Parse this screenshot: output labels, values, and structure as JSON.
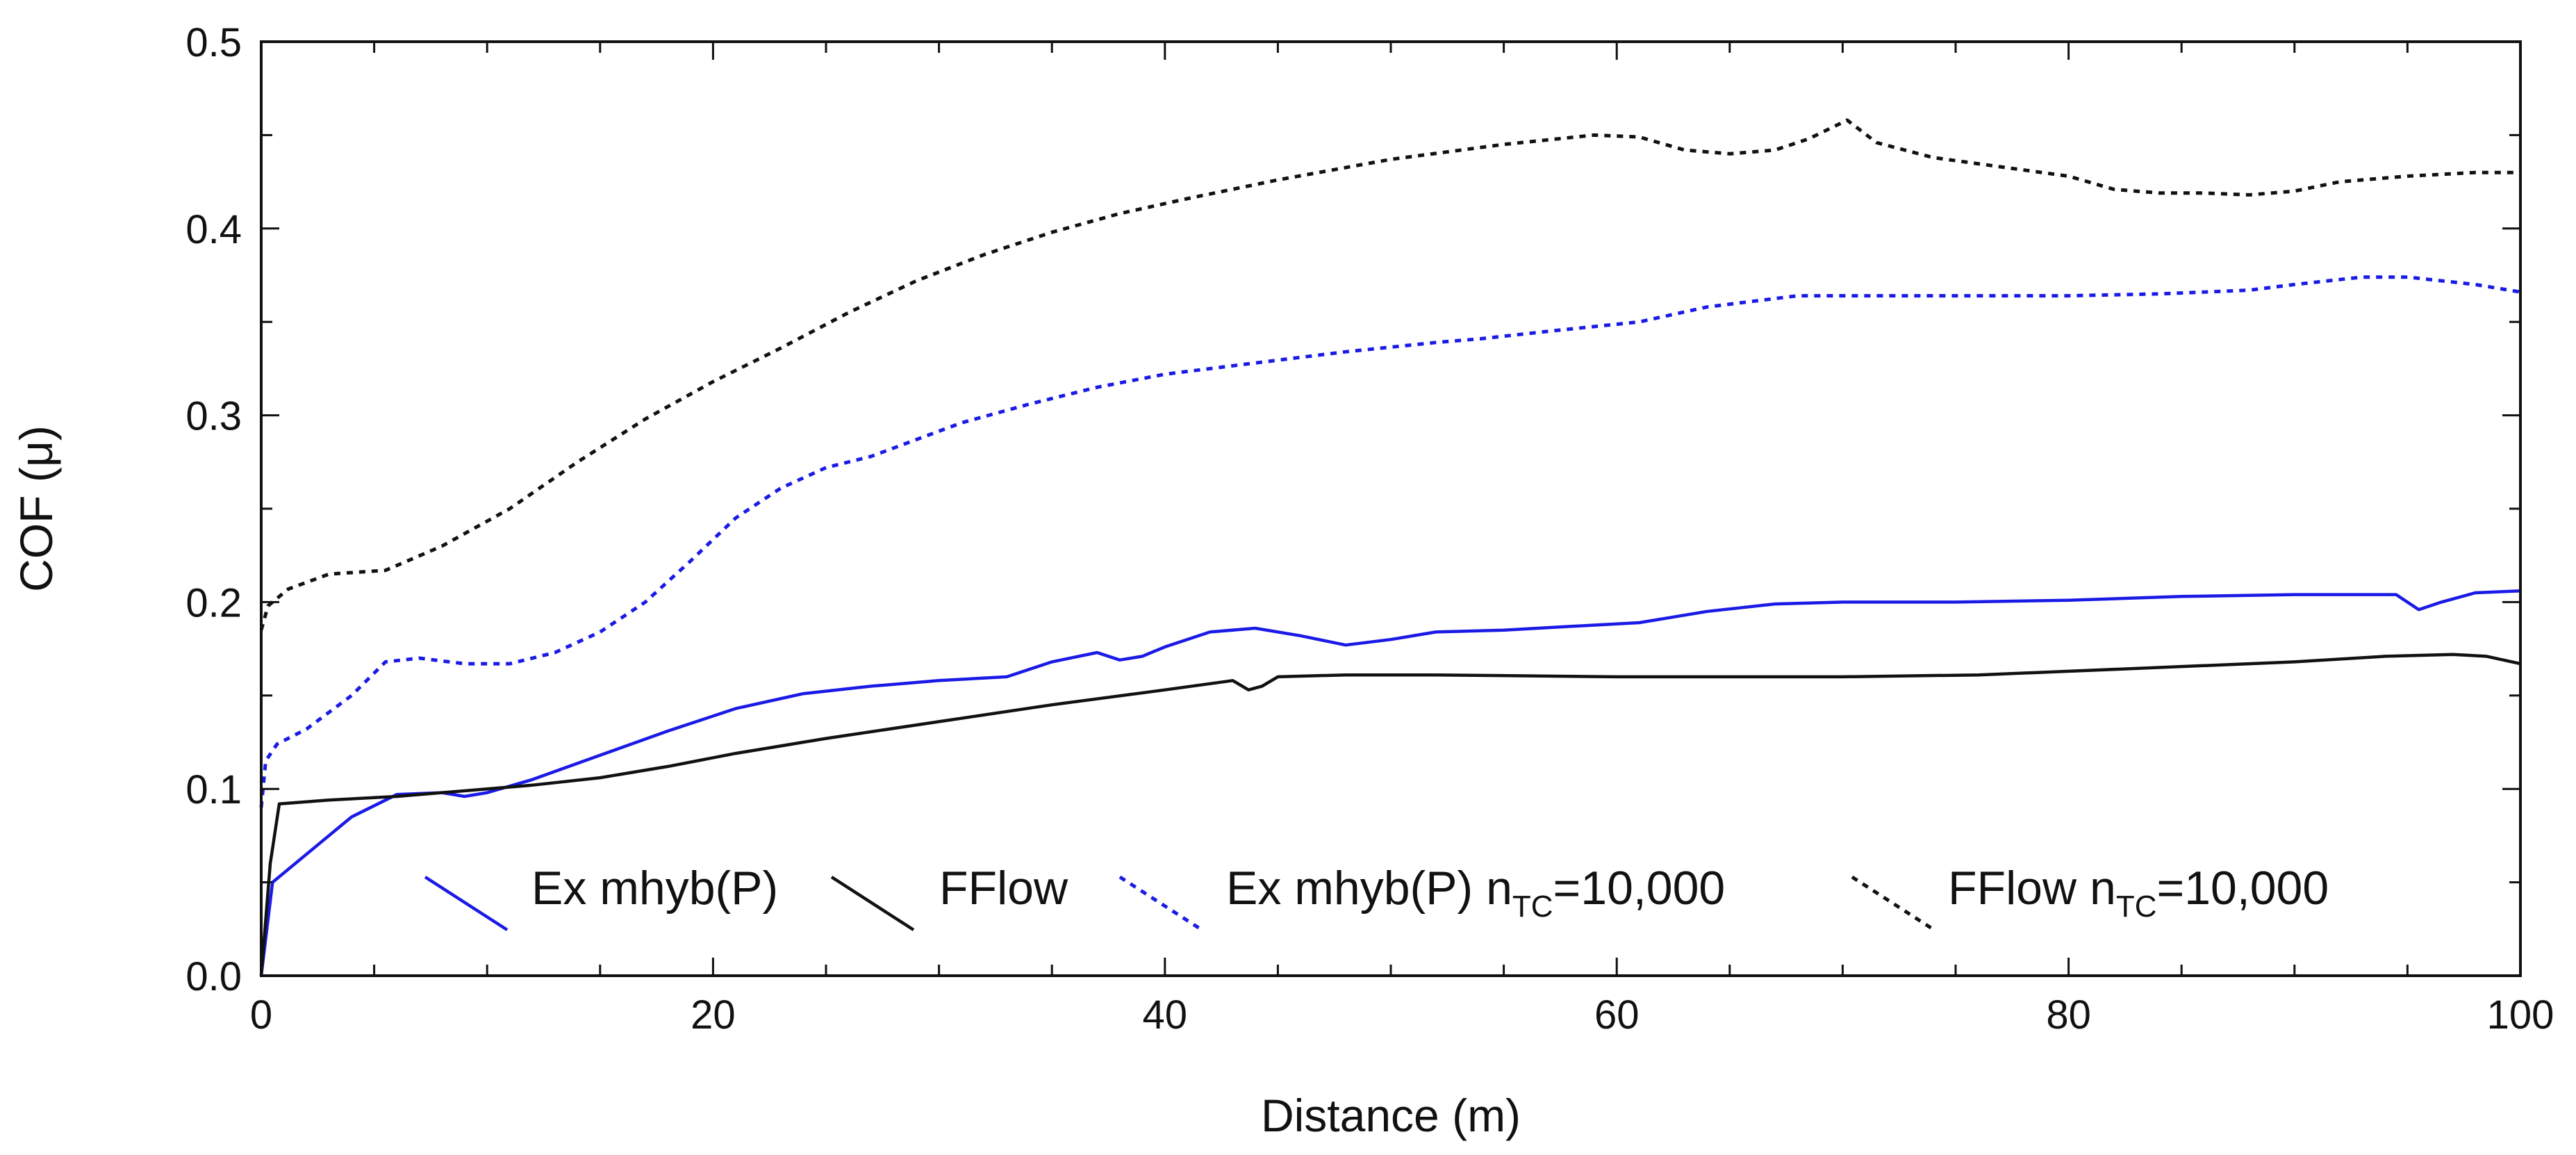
{
  "chart_data": {
    "type": "line",
    "title": "",
    "xlabel": "Distance (m)",
    "ylabel": "COF (μ)",
    "xlim": [
      0,
      100
    ],
    "ylim": [
      0,
      0.5
    ],
    "x_ticks": [
      0,
      20,
      40,
      60,
      80,
      100
    ],
    "x_tick_labels": [
      "0",
      "20",
      "40",
      "60",
      "80",
      "100"
    ],
    "y_ticks": [
      0,
      0.1,
      0.2,
      0.3,
      0.4,
      0.5
    ],
    "y_tick_labels": [
      "0.0",
      "0.1",
      "0.2",
      "0.3",
      "0.4",
      "0.5"
    ],
    "grid": false,
    "legend_position": "bottom",
    "series": [
      {
        "name": "Ex mhyb(P)",
        "legend_main": "Ex mhyb(P)",
        "legend_sub": "",
        "legend_tail": "",
        "color": "#1a1ae6",
        "style": "solid",
        "x": [
          0,
          0.5,
          2,
          4,
          6,
          8,
          9,
          10,
          12,
          15,
          18,
          21,
          24,
          27,
          30,
          33,
          35,
          37,
          38,
          39,
          40,
          42,
          44,
          46,
          48,
          50,
          52,
          55,
          58,
          61,
          64,
          67,
          70,
          75,
          80,
          85,
          90,
          93,
          94.5,
          95.5,
          96.5,
          98,
          100
        ],
        "y": [
          0.0,
          0.05,
          0.065,
          0.085,
          0.097,
          0.098,
          0.096,
          0.098,
          0.105,
          0.118,
          0.131,
          0.143,
          0.151,
          0.155,
          0.158,
          0.16,
          0.168,
          0.173,
          0.169,
          0.171,
          0.176,
          0.184,
          0.186,
          0.182,
          0.177,
          0.18,
          0.184,
          0.185,
          0.187,
          0.189,
          0.195,
          0.199,
          0.2,
          0.2,
          0.201,
          0.203,
          0.204,
          0.204,
          0.204,
          0.196,
          0.2,
          0.205,
          0.206
        ]
      },
      {
        "name": "FFlow",
        "legend_main": "FFlow",
        "legend_sub": "",
        "legend_tail": "",
        "color": "#111111",
        "style": "solid",
        "x": [
          0,
          0.4,
          0.8,
          3,
          6,
          8,
          10,
          12,
          15,
          18,
          21,
          25,
          30,
          35,
          40,
          43,
          43.7,
          44.3,
          45,
          48,
          52,
          60,
          70,
          76,
          80,
          86,
          90,
          94,
          97,
          98.5,
          100
        ],
        "y": [
          0.0,
          0.06,
          0.092,
          0.094,
          0.096,
          0.098,
          0.1,
          0.102,
          0.106,
          0.112,
          0.119,
          0.127,
          0.136,
          0.145,
          0.153,
          0.158,
          0.153,
          0.155,
          0.16,
          0.161,
          0.161,
          0.16,
          0.16,
          0.161,
          0.163,
          0.166,
          0.168,
          0.171,
          0.172,
          0.171,
          0.167
        ]
      },
      {
        "name": "Ex mhyb(P) nTC=10,000",
        "legend_main": "Ex mhyb(P) n",
        "legend_sub": "TC",
        "legend_tail": "=10,000",
        "color": "#1a1ae6",
        "style": "dotted",
        "x": [
          0,
          0.2,
          0.7,
          2,
          4,
          5.5,
          7,
          9,
          11,
          13,
          15,
          17,
          19,
          21,
          23,
          25,
          27,
          29,
          31,
          34,
          37,
          40,
          44,
          48,
          52,
          54,
          57,
          61,
          64,
          68,
          72,
          76,
          80,
          84,
          88,
          90,
          93,
          95,
          98,
          100
        ],
        "y": [
          0.09,
          0.115,
          0.124,
          0.132,
          0.15,
          0.168,
          0.17,
          0.167,
          0.167,
          0.173,
          0.184,
          0.2,
          0.222,
          0.245,
          0.261,
          0.272,
          0.278,
          0.287,
          0.296,
          0.306,
          0.315,
          0.322,
          0.328,
          0.334,
          0.339,
          0.341,
          0.345,
          0.35,
          0.358,
          0.364,
          0.364,
          0.364,
          0.364,
          0.365,
          0.367,
          0.37,
          0.374,
          0.374,
          0.37,
          0.366
        ]
      },
      {
        "name": "FFlow nTC=10,000",
        "legend_main": "FFlow n",
        "legend_sub": "TC",
        "legend_tail": "=10,000",
        "color": "#111111",
        "style": "dotted",
        "x": [
          0,
          0.3,
          1.2,
          3,
          5.5,
          8,
          11,
          14,
          17,
          20,
          23,
          26,
          29,
          32,
          35,
          38,
          41,
          45,
          50,
          55,
          59,
          61,
          63,
          65,
          67,
          68.5,
          70.2,
          71.5,
          74,
          77,
          80,
          82,
          84,
          86,
          88,
          90,
          92,
          95,
          98,
          100
        ],
        "y": [
          0.185,
          0.198,
          0.207,
          0.215,
          0.217,
          0.23,
          0.25,
          0.275,
          0.298,
          0.318,
          0.336,
          0.355,
          0.372,
          0.386,
          0.398,
          0.408,
          0.416,
          0.426,
          0.437,
          0.445,
          0.45,
          0.449,
          0.442,
          0.44,
          0.442,
          0.448,
          0.458,
          0.446,
          0.438,
          0.433,
          0.428,
          0.421,
          0.419,
          0.419,
          0.418,
          0.42,
          0.425,
          0.428,
          0.43,
          0.43
        ]
      }
    ]
  }
}
